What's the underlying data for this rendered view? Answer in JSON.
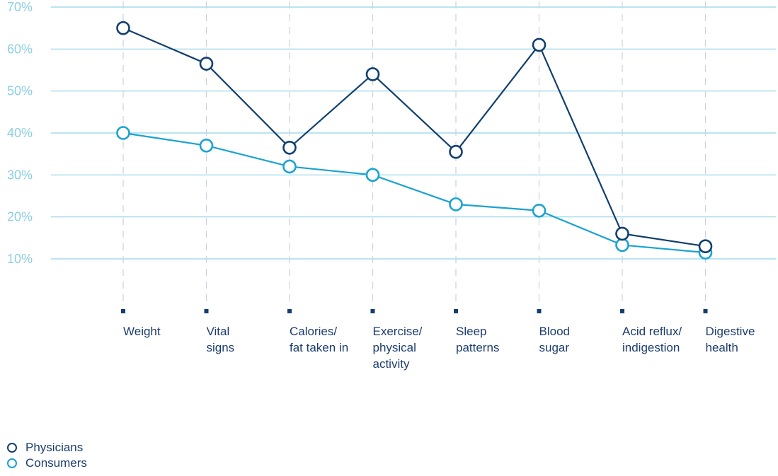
{
  "chart_data": {
    "type": "line",
    "categories": [
      [
        "Weight"
      ],
      [
        "Vital",
        "signs"
      ],
      [
        "Calories/",
        "fat taken in"
      ],
      [
        "Exercise/",
        "physical",
        "activity"
      ],
      [
        "Sleep",
        "patterns"
      ],
      [
        "Blood",
        "sugar"
      ],
      [
        "Acid reflux/",
        "indigestion"
      ],
      [
        "Digestive",
        "health"
      ]
    ],
    "series": [
      {
        "name": "Physicians",
        "color": "#123f6e",
        "values": [
          65,
          56.5,
          36.5,
          54,
          35.5,
          61,
          16,
          13
        ]
      },
      {
        "name": "Consumers",
        "color": "#1aa3d1",
        "values": [
          40,
          37,
          32,
          30,
          23,
          21.5,
          13.3,
          11.5
        ]
      }
    ],
    "yticks": [
      "10%",
      "20%",
      "30%",
      "40%",
      "50%",
      "60%",
      "70%"
    ],
    "ylim": [
      10,
      70
    ],
    "grid": true,
    "legend_position": "bottom-left",
    "grid_color": "#8fd3e6",
    "tick_label_color": "#8fcfe3",
    "category_label_color": "#1c3d6e"
  }
}
